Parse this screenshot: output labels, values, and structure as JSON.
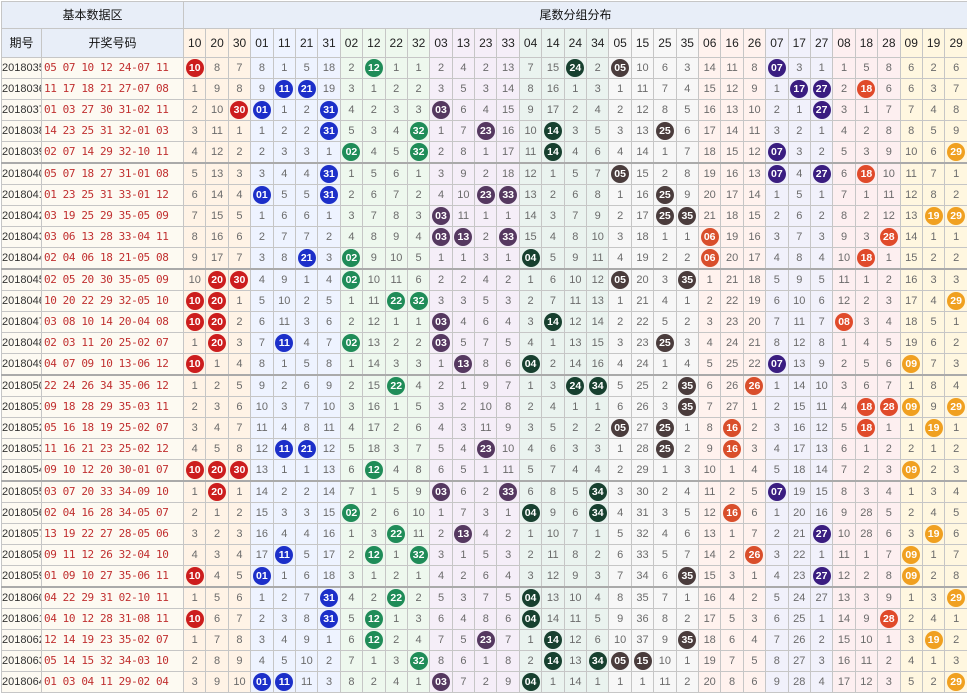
{
  "header": {
    "basic": "基本数据区",
    "tail": "尾数分组分布",
    "period": "期号",
    "draw": "开奖号码"
  },
  "groups": [
    {
      "nums": [
        "10",
        "20",
        "30"
      ],
      "bg": "#fff3e6",
      "ball": "#cc1d1d"
    },
    {
      "nums": [
        "01",
        "11",
        "21",
        "31"
      ],
      "bg": "#eef3ff",
      "ball": "#1c2fc9"
    },
    {
      "nums": [
        "02",
        "12",
        "22",
        "32"
      ],
      "bg": "#eef8ee",
      "ball": "#1f8c58"
    },
    {
      "nums": [
        "03",
        "13",
        "23",
        "33"
      ],
      "bg": "#f5eef8",
      "ball": "#553860"
    },
    {
      "nums": [
        "04",
        "14",
        "24",
        "34"
      ],
      "bg": "#eaf3ef",
      "ball": "#17402f"
    },
    {
      "nums": [
        "05",
        "15",
        "25",
        "35"
      ],
      "bg": "#f7f7f7",
      "ball": "#4a3c3c"
    },
    {
      "nums": [
        "06",
        "16",
        "26"
      ],
      "bg": "#fff2ee",
      "ball": "#d94e2b"
    },
    {
      "nums": [
        "07",
        "17",
        "27"
      ],
      "bg": "#f1f1fb",
      "ball": "#3a1d80"
    },
    {
      "nums": [
        "08",
        "18",
        "28"
      ],
      "bg": "#fdeff0",
      "ball": "#e04a2a"
    },
    {
      "nums": [
        "09",
        "19",
        "29"
      ],
      "bg": "#fff7e0",
      "ball": "#f0a020"
    }
  ],
  "rows": [
    {
      "issue": "2018035",
      "draw": "05 07 10 12 24-07 11",
      "cells": [
        "10",
        "8",
        "7",
        "8",
        "1",
        "5",
        "18",
        "2",
        "12",
        "1",
        "1",
        "2",
        "4",
        "2",
        "13",
        "7",
        "15",
        "24",
        "2",
        "05",
        "10",
        "6",
        "3",
        "14",
        "11",
        "8",
        "07",
        "3",
        "1",
        "1",
        "5",
        "8",
        "6",
        "2",
        "6"
      ]
    },
    {
      "issue": "2018036",
      "draw": "11 17 18 21 27-07 08",
      "cells": [
        "1",
        "9",
        "8",
        "9",
        "11",
        "21",
        "19",
        "3",
        "1",
        "2",
        "2",
        "3",
        "5",
        "3",
        "14",
        "8",
        "16",
        "1",
        "3",
        "1",
        "11",
        "7",
        "4",
        "15",
        "12",
        "9",
        "1",
        "17",
        "27",
        "2",
        "18",
        "6",
        "6",
        "3",
        "7"
      ]
    },
    {
      "issue": "2018037",
      "draw": "01 03 27 30 31-02 11",
      "cells": [
        "2",
        "10",
        "30",
        "01",
        "1",
        "2",
        "31",
        "4",
        "2",
        "3",
        "3",
        "03",
        "6",
        "4",
        "15",
        "9",
        "17",
        "2",
        "4",
        "2",
        "12",
        "8",
        "5",
        "16",
        "13",
        "10",
        "2",
        "1",
        "27",
        "3",
        "1",
        "7",
        "7",
        "4",
        "8"
      ]
    },
    {
      "issue": "2018038",
      "draw": "14 23 25 31 32-01 03",
      "cells": [
        "3",
        "11",
        "1",
        "1",
        "2",
        "2",
        "31",
        "5",
        "3",
        "4",
        "32",
        "1",
        "7",
        "23",
        "16",
        "10",
        "14",
        "3",
        "5",
        "3",
        "13",
        "25",
        "6",
        "17",
        "14",
        "11",
        "3",
        "2",
        "1",
        "4",
        "2",
        "8",
        "8",
        "5",
        "9"
      ]
    },
    {
      "issue": "2018039",
      "draw": "02 07 14 29 32-10 11",
      "cells": [
        "4",
        "12",
        "2",
        "2",
        "3",
        "3",
        "1",
        "02",
        "4",
        "5",
        "32",
        "2",
        "8",
        "1",
        "17",
        "11",
        "14",
        "4",
        "6",
        "4",
        "14",
        "1",
        "7",
        "18",
        "15",
        "12",
        "07",
        "3",
        "2",
        "5",
        "3",
        "9",
        "10",
        "6",
        "29"
      ]
    },
    {
      "issue": "2018040",
      "draw": "05 07 18 27 31-01 08",
      "cells": [
        "5",
        "13",
        "3",
        "3",
        "4",
        "4",
        "31",
        "1",
        "5",
        "6",
        "1",
        "3",
        "9",
        "2",
        "18",
        "12",
        "1",
        "5",
        "7",
        "05",
        "15",
        "2",
        "8",
        "19",
        "16",
        "13",
        "07",
        "4",
        "27",
        "6",
        "18",
        "10",
        "11",
        "7",
        "1"
      ]
    },
    {
      "issue": "2018041",
      "draw": "01 23 25 31 33-01 12",
      "cells": [
        "6",
        "14",
        "4",
        "01",
        "5",
        "5",
        "31",
        "2",
        "6",
        "7",
        "2",
        "4",
        "10",
        "23",
        "33",
        "13",
        "2",
        "6",
        "8",
        "1",
        "16",
        "25",
        "9",
        "20",
        "17",
        "14",
        "1",
        "5",
        "1",
        "7",
        "1",
        "11",
        "12",
        "8",
        "2"
      ]
    },
    {
      "issue": "2018042",
      "draw": "03 19 25 29 35-05 09",
      "cells": [
        "7",
        "15",
        "5",
        "1",
        "6",
        "6",
        "1",
        "3",
        "7",
        "8",
        "3",
        "03",
        "11",
        "1",
        "1",
        "14",
        "3",
        "7",
        "9",
        "2",
        "17",
        "25",
        "35",
        "21",
        "18",
        "15",
        "2",
        "6",
        "2",
        "8",
        "2",
        "12",
        "13",
        "19",
        "29"
      ]
    },
    {
      "issue": "2018043",
      "draw": "03 06 13 28 33-04 11",
      "cells": [
        "8",
        "16",
        "6",
        "2",
        "7",
        "7",
        "2",
        "4",
        "8",
        "9",
        "4",
        "03",
        "13",
        "2",
        "33",
        "15",
        "4",
        "8",
        "10",
        "3",
        "18",
        "1",
        "1",
        "06",
        "19",
        "16",
        "3",
        "7",
        "3",
        "9",
        "3",
        "28",
        "14",
        "1",
        "1"
      ]
    },
    {
      "issue": "2018044",
      "draw": "02 04 06 18 21-05 08",
      "cells": [
        "9",
        "17",
        "7",
        "3",
        "8",
        "21",
        "3",
        "02",
        "9",
        "10",
        "5",
        "1",
        "1",
        "3",
        "1",
        "04",
        "5",
        "9",
        "11",
        "4",
        "19",
        "2",
        "2",
        "06",
        "20",
        "17",
        "4",
        "8",
        "4",
        "10",
        "18",
        "1",
        "15",
        "2",
        "2"
      ]
    },
    {
      "issue": "2018045",
      "draw": "02 05 20 30 35-05 09",
      "cells": [
        "10",
        "20",
        "30",
        "4",
        "9",
        "1",
        "4",
        "02",
        "10",
        "11",
        "6",
        "2",
        "2",
        "4",
        "2",
        "1",
        "6",
        "10",
        "12",
        "05",
        "20",
        "3",
        "35",
        "1",
        "21",
        "18",
        "5",
        "9",
        "5",
        "11",
        "1",
        "2",
        "16",
        "3",
        "3"
      ]
    },
    {
      "issue": "2018046",
      "draw": "10 20 22 29 32-05 10",
      "cells": [
        "10",
        "20",
        "1",
        "5",
        "10",
        "2",
        "5",
        "1",
        "11",
        "22",
        "32",
        "3",
        "3",
        "5",
        "3",
        "2",
        "7",
        "11",
        "13",
        "1",
        "21",
        "4",
        "1",
        "2",
        "22",
        "19",
        "6",
        "10",
        "6",
        "12",
        "2",
        "3",
        "17",
        "4",
        "29"
      ]
    },
    {
      "issue": "2018047",
      "draw": "03 08 10 14 20-04 08",
      "cells": [
        "10",
        "20",
        "2",
        "6",
        "11",
        "3",
        "6",
        "2",
        "12",
        "1",
        "1",
        "03",
        "4",
        "6",
        "4",
        "3",
        "14",
        "12",
        "14",
        "2",
        "22",
        "5",
        "2",
        "3",
        "23",
        "20",
        "7",
        "11",
        "7",
        "08",
        "3",
        "4",
        "18",
        "5",
        "1"
      ]
    },
    {
      "issue": "2018048",
      "draw": "02 03 11 20 25-02 07",
      "cells": [
        "1",
        "20",
        "3",
        "7",
        "11",
        "4",
        "7",
        "02",
        "13",
        "2",
        "2",
        "03",
        "5",
        "7",
        "5",
        "4",
        "1",
        "13",
        "15",
        "3",
        "23",
        "25",
        "3",
        "4",
        "24",
        "21",
        "8",
        "12",
        "8",
        "1",
        "4",
        "5",
        "19",
        "6",
        "2"
      ]
    },
    {
      "issue": "2018049",
      "draw": "04 07 09 10 13-06 12",
      "cells": [
        "10",
        "1",
        "4",
        "8",
        "1",
        "5",
        "8",
        "1",
        "14",
        "3",
        "3",
        "1",
        "13",
        "8",
        "6",
        "04",
        "2",
        "14",
        "16",
        "4",
        "24",
        "1",
        "4",
        "5",
        "25",
        "22",
        "07",
        "13",
        "9",
        "2",
        "5",
        "6",
        "09",
        "7",
        "3"
      ]
    },
    {
      "issue": "2018050",
      "draw": "22 24 26 34 35-06 12",
      "cells": [
        "1",
        "2",
        "5",
        "9",
        "2",
        "6",
        "9",
        "2",
        "15",
        "22",
        "4",
        "2",
        "1",
        "9",
        "7",
        "1",
        "3",
        "24",
        "34",
        "5",
        "25",
        "2",
        "35",
        "6",
        "26",
        "26",
        "1",
        "14",
        "10",
        "3",
        "6",
        "7",
        "1",
        "8",
        "4"
      ]
    },
    {
      "issue": "2018051",
      "draw": "09 18 28 29 35-03 11",
      "cells": [
        "2",
        "3",
        "6",
        "10",
        "3",
        "7",
        "10",
        "3",
        "16",
        "1",
        "5",
        "3",
        "2",
        "10",
        "8",
        "2",
        "4",
        "1",
        "1",
        "6",
        "26",
        "3",
        "35",
        "7",
        "27",
        "1",
        "2",
        "15",
        "11",
        "4",
        "18",
        "28",
        "09",
        "9",
        "29"
      ]
    },
    {
      "issue": "2018052",
      "draw": "05 16 18 19 25-02 07",
      "cells": [
        "3",
        "4",
        "7",
        "11",
        "4",
        "8",
        "11",
        "4",
        "17",
        "2",
        "6",
        "4",
        "3",
        "11",
        "9",
        "3",
        "5",
        "2",
        "2",
        "05",
        "27",
        "25",
        "1",
        "8",
        "16",
        "2",
        "3",
        "16",
        "12",
        "5",
        "18",
        "1",
        "1",
        "19",
        "1"
      ]
    },
    {
      "issue": "2018053",
      "draw": "11 16 21 23 25-02 12",
      "cells": [
        "4",
        "5",
        "8",
        "12",
        "11",
        "21",
        "12",
        "5",
        "18",
        "3",
        "7",
        "5",
        "4",
        "23",
        "10",
        "4",
        "6",
        "3",
        "3",
        "1",
        "28",
        "25",
        "2",
        "9",
        "16",
        "3",
        "4",
        "17",
        "13",
        "6",
        "1",
        "2",
        "2",
        "1",
        "2"
      ]
    },
    {
      "issue": "2018054",
      "draw": "09 10 12 20 30-01 07",
      "cells": [
        "10",
        "20",
        "30",
        "13",
        "1",
        "1",
        "13",
        "6",
        "12",
        "4",
        "8",
        "6",
        "5",
        "1",
        "11",
        "5",
        "7",
        "4",
        "4",
        "2",
        "29",
        "1",
        "3",
        "10",
        "1",
        "4",
        "5",
        "18",
        "14",
        "7",
        "2",
        "3",
        "09",
        "2",
        "3"
      ]
    },
    {
      "issue": "2018055",
      "draw": "03 07 20 33 34-09 10",
      "cells": [
        "1",
        "20",
        "1",
        "14",
        "2",
        "2",
        "14",
        "7",
        "1",
        "5",
        "9",
        "03",
        "6",
        "2",
        "33",
        "6",
        "8",
        "5",
        "34",
        "3",
        "30",
        "2",
        "4",
        "11",
        "2",
        "5",
        "07",
        "19",
        "15",
        "8",
        "3",
        "4",
        "1",
        "3",
        "4"
      ]
    },
    {
      "issue": "2018056",
      "draw": "02 04 16 28 34-05 07",
      "cells": [
        "2",
        "1",
        "2",
        "15",
        "3",
        "3",
        "15",
        "02",
        "2",
        "6",
        "10",
        "1",
        "7",
        "3",
        "1",
        "04",
        "9",
        "6",
        "34",
        "4",
        "31",
        "3",
        "5",
        "12",
        "16",
        "6",
        "1",
        "20",
        "16",
        "9",
        "28",
        "5",
        "2",
        "4",
        "5"
      ]
    },
    {
      "issue": "2018057",
      "draw": "13 19 22 27 28-05 06",
      "cells": [
        "3",
        "2",
        "3",
        "16",
        "4",
        "4",
        "16",
        "1",
        "3",
        "22",
        "11",
        "2",
        "13",
        "4",
        "2",
        "1",
        "10",
        "7",
        "1",
        "5",
        "32",
        "4",
        "6",
        "13",
        "1",
        "7",
        "2",
        "21",
        "27",
        "10",
        "28",
        "6",
        "3",
        "19",
        "6"
      ]
    },
    {
      "issue": "2018058",
      "draw": "09 11 12 26 32-04 10",
      "cells": [
        "4",
        "3",
        "4",
        "17",
        "11",
        "5",
        "17",
        "2",
        "12",
        "1",
        "32",
        "3",
        "1",
        "5",
        "3",
        "2",
        "11",
        "8",
        "2",
        "6",
        "33",
        "5",
        "7",
        "14",
        "2",
        "26",
        "3",
        "22",
        "1",
        "11",
        "1",
        "7",
        "09",
        "1",
        "7"
      ]
    },
    {
      "issue": "2018059",
      "draw": "01 09 10 27 35-06 11",
      "cells": [
        "10",
        "4",
        "5",
        "01",
        "1",
        "6",
        "18",
        "3",
        "1",
        "2",
        "1",
        "4",
        "2",
        "6",
        "4",
        "3",
        "12",
        "9",
        "3",
        "7",
        "34",
        "6",
        "35",
        "15",
        "3",
        "1",
        "4",
        "23",
        "27",
        "12",
        "2",
        "8",
        "09",
        "2",
        "8"
      ]
    },
    {
      "issue": "2018060",
      "draw": "04 22 29 31 02-10 11",
      "cells": [
        "1",
        "5",
        "6",
        "1",
        "2",
        "7",
        "31",
        "4",
        "2",
        "22",
        "2",
        "5",
        "3",
        "7",
        "5",
        "04",
        "13",
        "10",
        "4",
        "8",
        "35",
        "7",
        "1",
        "16",
        "4",
        "2",
        "5",
        "24",
        "27",
        "13",
        "3",
        "9",
        "1",
        "3",
        "29"
      ]
    },
    {
      "issue": "2018061",
      "draw": "04 10 12 28 31-08 11",
      "cells": [
        "10",
        "6",
        "7",
        "2",
        "3",
        "8",
        "31",
        "5",
        "12",
        "1",
        "3",
        "6",
        "4",
        "8",
        "6",
        "04",
        "14",
        "11",
        "5",
        "9",
        "36",
        "8",
        "2",
        "17",
        "5",
        "3",
        "6",
        "25",
        "1",
        "14",
        "9",
        "28",
        "2",
        "4",
        "1"
      ]
    },
    {
      "issue": "2018062",
      "draw": "12 14 19 23 35-02 07",
      "cells": [
        "1",
        "7",
        "8",
        "3",
        "4",
        "9",
        "1",
        "6",
        "12",
        "2",
        "4",
        "7",
        "5",
        "23",
        "7",
        "1",
        "14",
        "12",
        "6",
        "10",
        "37",
        "9",
        "35",
        "18",
        "6",
        "4",
        "7",
        "26",
        "2",
        "15",
        "10",
        "1",
        "3",
        "19",
        "2"
      ]
    },
    {
      "issue": "2018063",
      "draw": "05 14 15 32 34-03 10",
      "cells": [
        "2",
        "8",
        "9",
        "4",
        "5",
        "10",
        "2",
        "7",
        "1",
        "3",
        "32",
        "8",
        "6",
        "1",
        "8",
        "2",
        "14",
        "13",
        "34",
        "05",
        "15",
        "10",
        "1",
        "19",
        "7",
        "5",
        "8",
        "27",
        "3",
        "16",
        "11",
        "2",
        "4",
        "1",
        "3"
      ]
    },
    {
      "issue": "2018064",
      "draw": "01 03 04 11 29-02 04",
      "cells": [
        "3",
        "9",
        "10",
        "01",
        "11",
        "11",
        "3",
        "8",
        "2",
        "4",
        "1",
        "03",
        "7",
        "2",
        "9",
        "04",
        "1",
        "14",
        "1",
        "1",
        "1",
        "11",
        "2",
        "20",
        "8",
        "6",
        "9",
        "28",
        "4",
        "17",
        "12",
        "3",
        "5",
        "2",
        "29"
      ]
    }
  ]
}
